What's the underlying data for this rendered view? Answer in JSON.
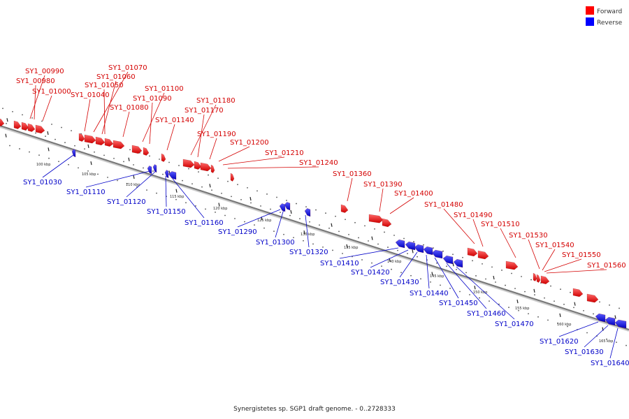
{
  "caption": "Synergistetes sp. SGP1 draft genome. - 0..2728333",
  "colors": {
    "forward": "#ff0000",
    "reverse": "#0000ff",
    "backbone": "#777777"
  },
  "legend": [
    {
      "label": "Forward",
      "color": "#ff0000"
    },
    {
      "label": "Reverse",
      "color": "#0000ff"
    }
  ],
  "scale_ticks": [
    "100 kbp",
    "105 kbp",
    "110 kbp",
    "115 kbp",
    "120 kbp",
    "125 kbp",
    "130 kbp",
    "135 kbp",
    "140 kbp",
    "145 kbp",
    "150 kbp",
    "155 kbp",
    "160 kbp",
    "165 kbp"
  ],
  "forward_genes": [
    "SY1_00990",
    "SY1_00980",
    "SY1_01000",
    "SY1_01070",
    "SY1_01060",
    "SY1_01050",
    "SY1_01040",
    "SY1_01080",
    "SY1_01100",
    "SY1_01090",
    "SY1_01140",
    "SY1_01180",
    "SY1_01170",
    "SY1_01190",
    "SY1_01200",
    "SY1_01210",
    "SY1_01240",
    "SY1_01360",
    "SY1_01390",
    "SY1_01400",
    "SY1_01480",
    "SY1_01490",
    "SY1_01510",
    "SY1_01530",
    "SY1_01540",
    "SY1_01550",
    "SY1_01560"
  ],
  "reverse_genes": [
    "SY1_01030",
    "SY1_01110",
    "SY1_01120",
    "SY1_01150",
    "SY1_01160",
    "SY1_01290",
    "SY1_01300",
    "SY1_01320",
    "SY1_01410",
    "SY1_01420",
    "SY1_01430",
    "SY1_01440",
    "SY1_01450",
    "SY1_01460",
    "SY1_01470",
    "SY1_01620",
    "SY1_01630",
    "SY1_01640"
  ]
}
